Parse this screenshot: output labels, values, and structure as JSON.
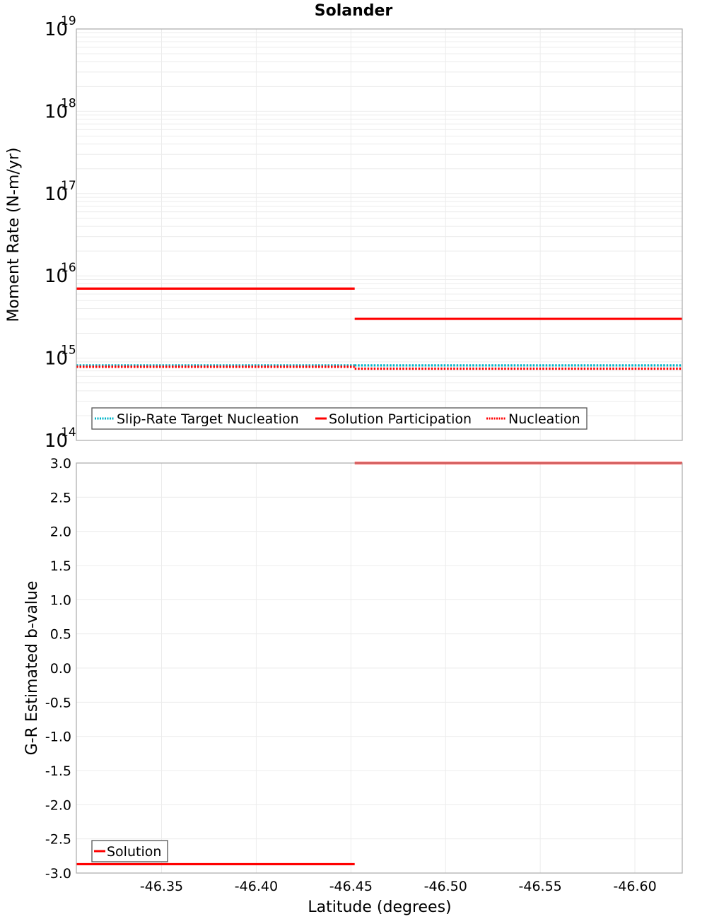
{
  "chart_data": [
    {
      "type": "line",
      "title": "Solander",
      "xlabel": "Latitude (degrees)",
      "ylabel": "Moment Rate (N-m/yr)",
      "yscale": "log",
      "ylim": [
        100000000000000.0,
        1e+19
      ],
      "xlim": [
        -46.305,
        -46.625
      ],
      "x_reversed": true,
      "grid": true,
      "y_tick_labels": [
        {
          "base": "10",
          "exp": "19",
          "value": 1e+19
        },
        {
          "base": "10",
          "exp": "18",
          "value": 1e+18
        },
        {
          "base": "10",
          "exp": "17",
          "value": 1e+17
        },
        {
          "base": "10",
          "exp": "16",
          "value": 1e+16
        },
        {
          "base": "10",
          "exp": "15",
          "value": 1000000000000000.0
        },
        {
          "base": "10",
          "exp": "14",
          "value": 100000000000000.0
        }
      ],
      "legend_position": "lower-left",
      "series": [
        {
          "name": "Slip-Rate Target Nucleation",
          "color": "#00b4c8",
          "style": "dotted",
          "segments": [
            {
              "x": [
                -46.305,
                -46.452
              ],
              "y": 800000000000000.0
            },
            {
              "x": [
                -46.452,
                -46.625
              ],
              "y": 800000000000000.0
            }
          ]
        },
        {
          "name": "Solution Participation",
          "color": "#ff0000",
          "style": "solid",
          "segments": [
            {
              "x": [
                -46.305,
                -46.452
              ],
              "y": 7000000000000000.0
            },
            {
              "x": [
                -46.452,
                -46.625
              ],
              "y": 3000000000000000.0
            }
          ]
        },
        {
          "name": "Nucleation",
          "color": "#ff0000",
          "style": "dotted",
          "segments": [
            {
              "x": [
                -46.305,
                -46.452
              ],
              "y": 800000000000000.0
            },
            {
              "x": [
                -46.452,
                -46.625
              ],
              "y": 760000000000000.0
            }
          ]
        }
      ]
    },
    {
      "type": "line",
      "title": "",
      "xlabel": "Latitude (degrees)",
      "ylabel": "G-R Estimated b-value",
      "ylim": [
        -3.0,
        3.0
      ],
      "xlim": [
        -46.305,
        -46.625
      ],
      "x_reversed": true,
      "grid": true,
      "y_ticks": [
        "3.0",
        "2.5",
        "2.0",
        "1.5",
        "1.0",
        "0.5",
        "0.0",
        "-0.5",
        "-1.0",
        "-1.5",
        "-2.0",
        "-2.5",
        "-3.0"
      ],
      "x_ticks": [
        "-46.35",
        "-46.40",
        "-46.45",
        "-46.50",
        "-46.55",
        "-46.60"
      ],
      "legend_position": "lower-left",
      "series": [
        {
          "name": "Solution",
          "color": "#ff0000",
          "style": "solid",
          "segments": [
            {
              "x": [
                -46.305,
                -46.452
              ],
              "y": -2.87
            },
            {
              "x": [
                -46.452,
                -46.625
              ],
              "y": 3.0
            }
          ]
        }
      ]
    }
  ],
  "labels": {
    "title": "Solander",
    "top_ylabel": "Moment Rate (N-m/yr)",
    "bottom_ylabel": "G-R Estimated b-value",
    "xlabel": "Latitude (degrees)",
    "legend_top": [
      "Slip-Rate Target Nucleation",
      "Solution Participation",
      "Nucleation"
    ],
    "legend_bottom": [
      "Solution"
    ]
  }
}
